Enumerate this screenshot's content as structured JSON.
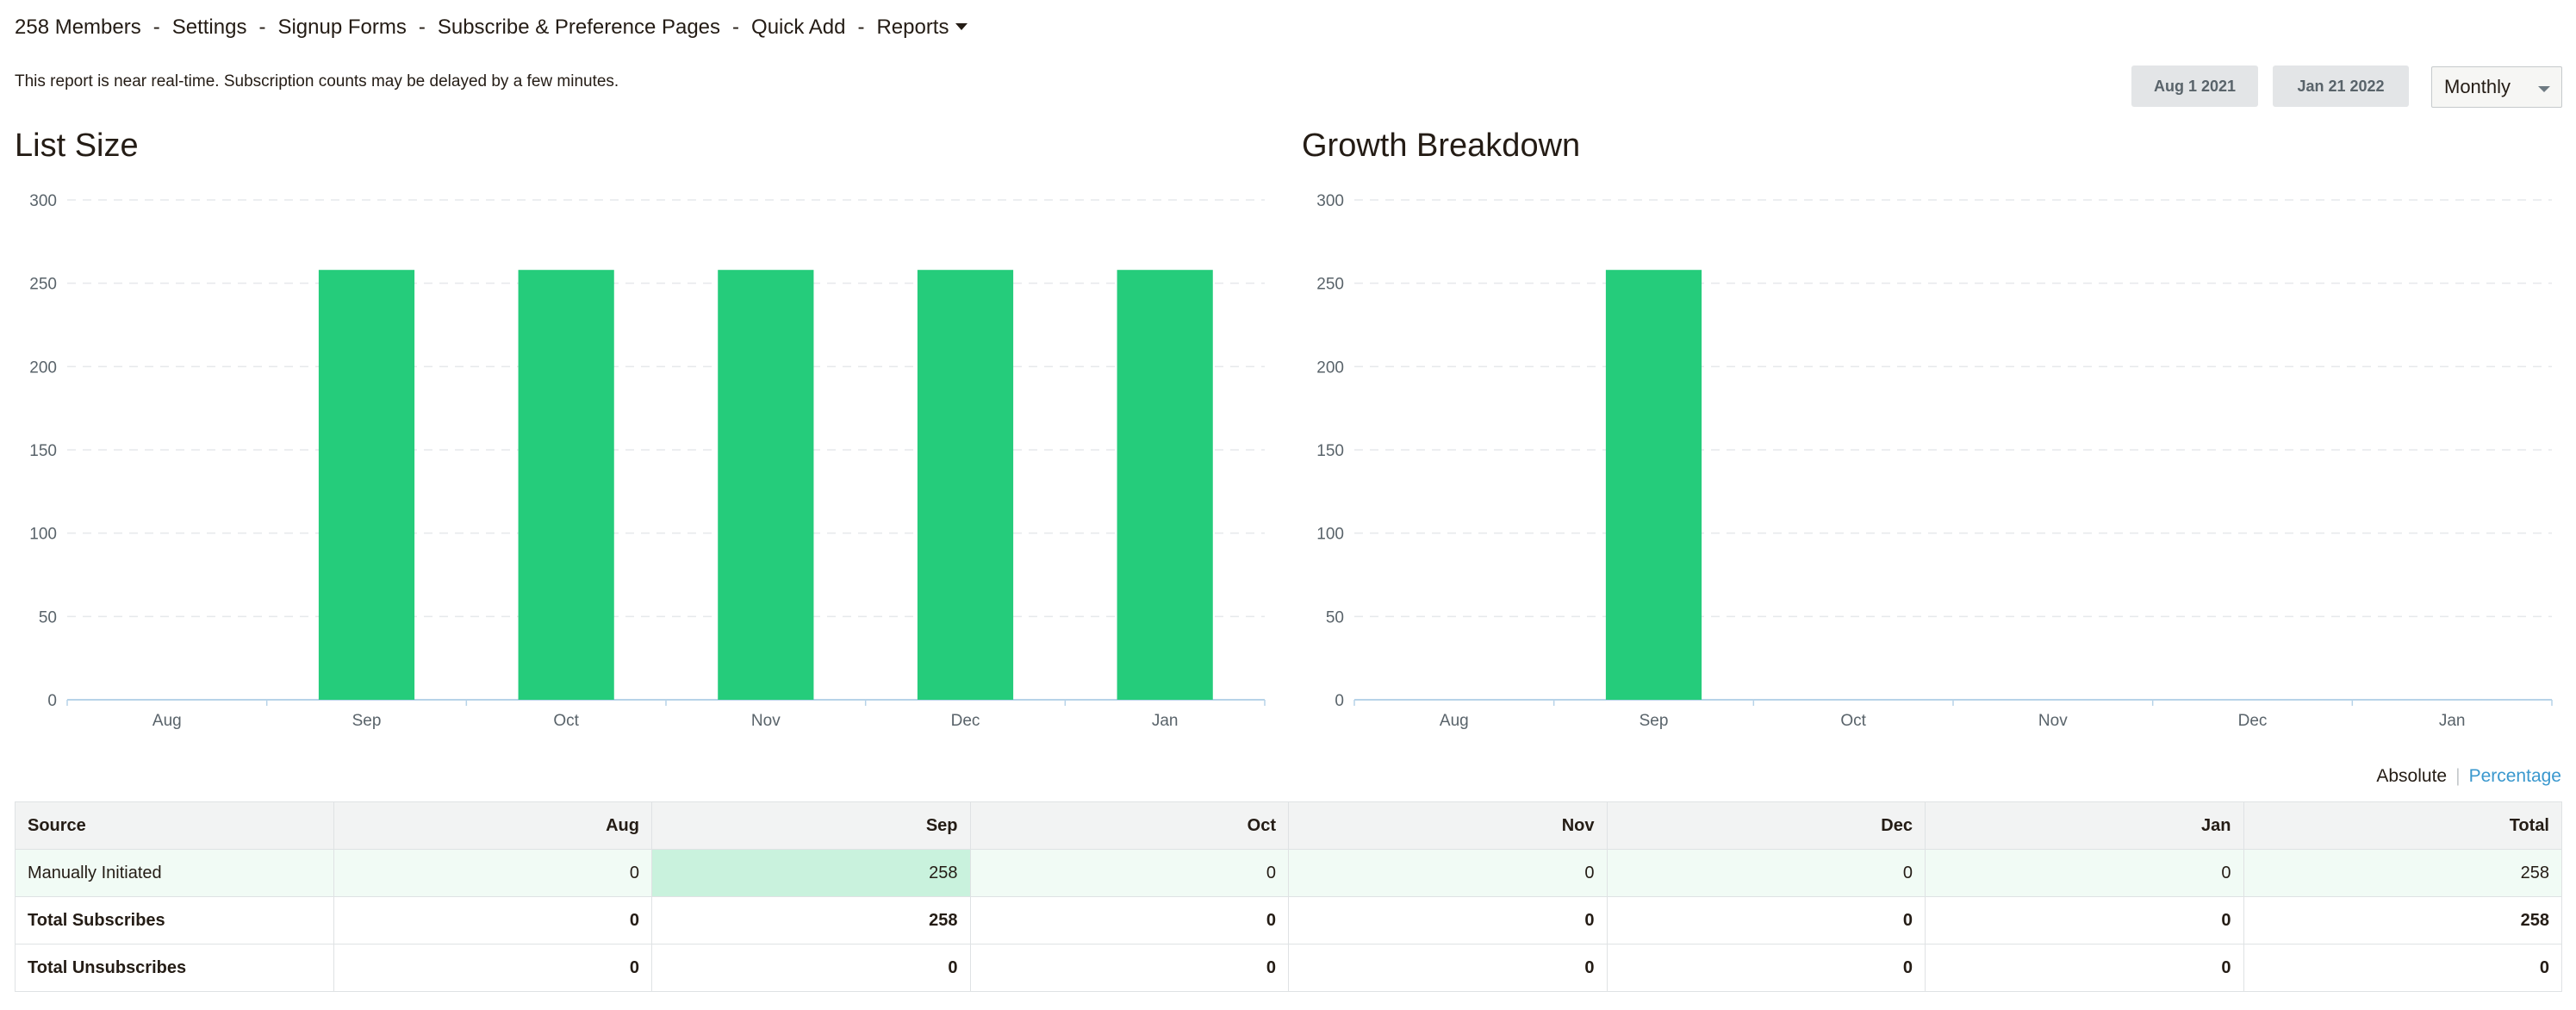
{
  "nav": {
    "members": "258 Members",
    "settings": "Settings",
    "signup_forms": "Signup Forms",
    "subscribe_pages": "Subscribe & Preference Pages",
    "quick_add": "Quick Add",
    "reports": "Reports",
    "separator": "-"
  },
  "notice": "This report is near real-time. Subscription counts may be delayed by a few minutes.",
  "controls": {
    "start_date": "Aug 1 2021",
    "end_date": "Jan 21 2022",
    "interval": "Monthly"
  },
  "colors": {
    "bar": "#25cc7b",
    "link": "#3a98ce",
    "grid": "#e6e9eb"
  },
  "chart_data": [
    {
      "type": "bar",
      "title": "List Size",
      "categories": [
        "Aug",
        "Sep",
        "Oct",
        "Nov",
        "Dec",
        "Jan"
      ],
      "values": [
        0,
        258,
        258,
        258,
        258,
        258
      ],
      "yticks": [
        0,
        50,
        100,
        150,
        200,
        250,
        300
      ],
      "ylim": [
        0,
        300
      ],
      "grid": true
    },
    {
      "type": "bar",
      "title": "Growth Breakdown",
      "categories": [
        "Aug",
        "Sep",
        "Oct",
        "Nov",
        "Dec",
        "Jan"
      ],
      "values": [
        0,
        258,
        0,
        0,
        0,
        0
      ],
      "yticks": [
        0,
        50,
        100,
        150,
        200,
        250,
        300
      ],
      "ylim": [
        0,
        300
      ],
      "grid": true
    }
  ],
  "toggle": {
    "absolute": "Absolute",
    "separator": "|",
    "percentage": "Percentage"
  },
  "table": {
    "headers": [
      "Source",
      "Aug",
      "Sep",
      "Oct",
      "Nov",
      "Dec",
      "Jan",
      "Total"
    ],
    "rows": [
      {
        "label": "Manually Initiated",
        "values": [
          "0",
          "258",
          "0",
          "0",
          "0",
          "0",
          "258"
        ]
      },
      {
        "label": "Total Subscribes",
        "values": [
          "0",
          "258",
          "0",
          "0",
          "0",
          "0",
          "258"
        ]
      },
      {
        "label": "Total Unsubscribes",
        "values": [
          "0",
          "0",
          "0",
          "0",
          "0",
          "0",
          "0"
        ]
      }
    ]
  }
}
